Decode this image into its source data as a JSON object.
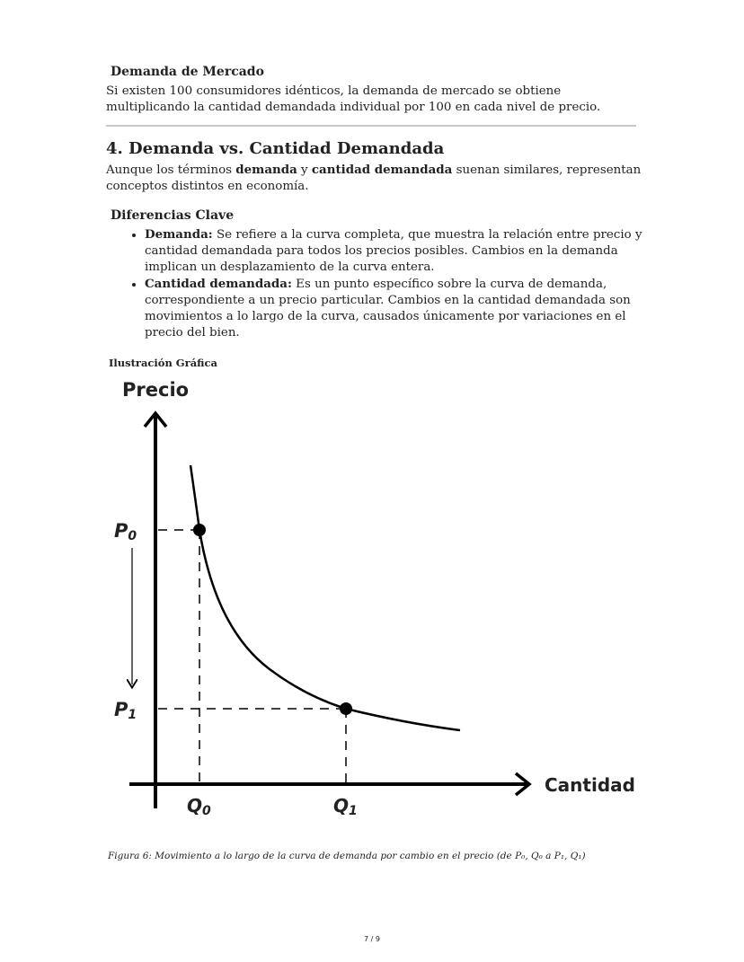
{
  "market_demand": {
    "heading": "Demanda de Mercado",
    "text": "Si existen 100 consumidores idénticos, la demanda de mercado se obtiene multiplicando la cantidad demandada individual por 100 en cada nivel de precio."
  },
  "section4": {
    "title": "4. Demanda vs. Cantidad Demandada",
    "intro_1": "Aunque los términos ",
    "intro_bold_1": "demanda",
    "intro_2": " y ",
    "intro_bold_2": "cantidad demandada",
    "intro_3": " suenan similares, representan conceptos distintos en economía."
  },
  "key_differences": {
    "heading": "Diferencias Clave",
    "items": [
      {
        "term": "Demanda:",
        "text": " Se refiere a la curva completa, que muestra la relación entre precio y cantidad demandada para todos los precios posibles. Cambios en la demanda implican un desplazamiento de la curva entera."
      },
      {
        "term": "Cantidad demandada:",
        "text": " Es un punto específico sobre la curva de demanda, correspondiente a un precio particular. Cambios en la cantidad demandada son movimientos a lo largo de la curva, causados únicamente por variaciones en el precio del bien."
      }
    ]
  },
  "illustration": {
    "heading": "Ilustración Gráfica",
    "y_axis_label": "Precio",
    "x_axis_label": "Cantidad",
    "p0": "P",
    "p0_sub": "0",
    "p1": "P",
    "p1_sub": "1",
    "q0": "Q",
    "q0_sub": "0",
    "q1": "Q",
    "q1_sub": "1"
  },
  "caption": "Figura 6: Movimiento a lo largo de la curva de demanda por cambio en el precio (de P₀, Q₀ a P₁, Q₁)",
  "page_number": "7 / 9"
}
